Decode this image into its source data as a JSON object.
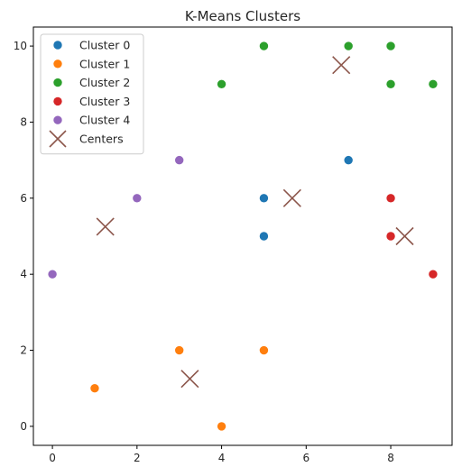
{
  "chart_data": {
    "type": "scatter",
    "title": "K-Means Clusters",
    "xlabel": "",
    "ylabel": "",
    "xlim": [
      -0.45,
      9.45
    ],
    "ylim": [
      -0.5,
      10.5
    ],
    "xticks": [
      0,
      2,
      4,
      6,
      8
    ],
    "yticks": [
      0,
      2,
      4,
      6,
      8,
      10
    ],
    "grid": false,
    "legend_position": "upper-left",
    "series": [
      {
        "name": "Cluster 0",
        "color": "#1f77b4",
        "marker": "circle",
        "points": [
          [
            5,
            6
          ],
          [
            5,
            5
          ],
          [
            7,
            7
          ]
        ]
      },
      {
        "name": "Cluster 1",
        "color": "#ff7f0e",
        "marker": "circle",
        "points": [
          [
            1,
            1
          ],
          [
            3,
            2
          ],
          [
            4,
            0
          ],
          [
            5,
            2
          ]
        ]
      },
      {
        "name": "Cluster 2",
        "color": "#2ca02c",
        "marker": "circle",
        "points": [
          [
            5,
            10
          ],
          [
            7,
            10
          ],
          [
            8,
            10
          ],
          [
            4,
            9
          ],
          [
            8,
            9
          ],
          [
            9,
            9
          ]
        ]
      },
      {
        "name": "Cluster 3",
        "color": "#d62728",
        "marker": "circle",
        "points": [
          [
            8,
            6
          ],
          [
            8,
            5
          ],
          [
            9,
            4
          ]
        ]
      },
      {
        "name": "Cluster 4",
        "color": "#9467bd",
        "marker": "circle",
        "points": [
          [
            0,
            4
          ],
          [
            2,
            6
          ],
          [
            3,
            7
          ]
        ]
      },
      {
        "name": "Centers",
        "color": "#8c564b",
        "marker": "x",
        "points": [
          [
            1.25,
            5.25
          ],
          [
            3.25,
            1.25
          ],
          [
            5.67,
            6.0
          ],
          [
            6.83,
            9.5
          ],
          [
            8.33,
            5.0
          ]
        ]
      }
    ]
  }
}
